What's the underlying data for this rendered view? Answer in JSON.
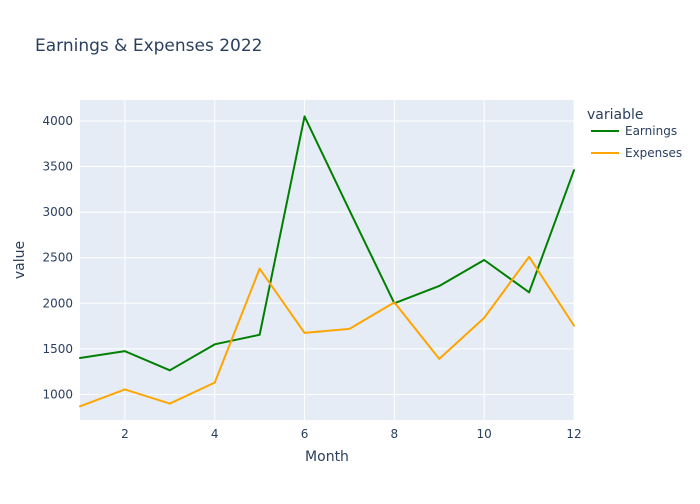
{
  "chart_data": {
    "type": "line",
    "title": "Earnings & Expenses 2022",
    "xlabel": "Month",
    "ylabel": "value",
    "xlim": [
      1,
      12
    ],
    "ylim": [
      720,
      4230
    ],
    "x_ticks": [
      2,
      4,
      6,
      8,
      10,
      12
    ],
    "y_ticks": [
      1000,
      1500,
      2000,
      2500,
      3000,
      3500,
      4000
    ],
    "grid": true,
    "plot_bgcolor": "#E5ECF6",
    "legend": {
      "title": "variable",
      "placement": "right"
    },
    "x": [
      1,
      2,
      3,
      4,
      5,
      6,
      7,
      8,
      9,
      10,
      11,
      12
    ],
    "series": [
      {
        "name": "Earnings",
        "color": "#008000",
        "values": [
          1400,
          1475,
          1265,
          1550,
          1655,
          4050,
          3020,
          2000,
          2190,
          2475,
          2120,
          3460
        ]
      },
      {
        "name": "Expenses",
        "color": "#FFA500",
        "values": [
          870,
          1055,
          900,
          1130,
          2380,
          1675,
          1720,
          2010,
          1390,
          1840,
          2510,
          1755
        ]
      }
    ]
  }
}
